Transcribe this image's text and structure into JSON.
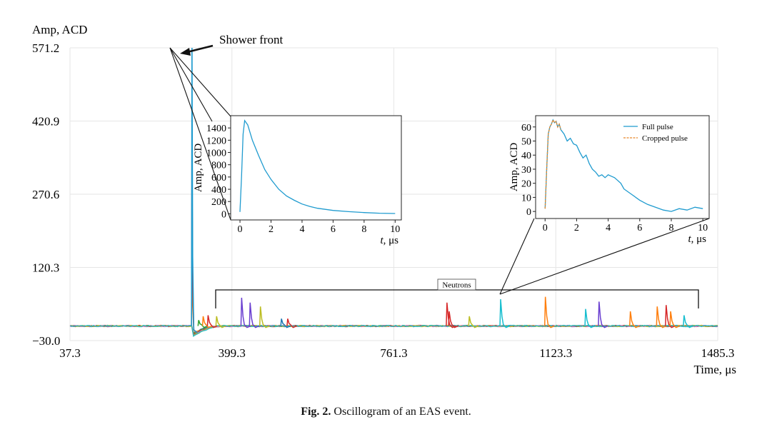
{
  "caption": {
    "label": "Fig. 2.",
    "text": "Oscillogram of an EAS event."
  },
  "chart_data": [
    {
      "type": "line",
      "title": "",
      "ylabel": "Amp, ACD",
      "xlabel": "Time, μs",
      "xlim": [
        37.3,
        1485.3
      ],
      "ylim": [
        -30.0,
        571.2
      ],
      "x_ticks": [
        "37.3",
        "399.3",
        "761.3",
        "1123.3",
        "1485.3"
      ],
      "y_ticks": [
        "−30.0",
        "120.3",
        "270.6",
        "420.9",
        "571.2"
      ],
      "x_tick_values": [
        37.3,
        399.3,
        761.3,
        1123.3,
        1485.3
      ],
      "y_tick_values": [
        -30.0,
        120.3,
        270.6,
        420.9,
        571.2
      ],
      "grid": true,
      "baseline": 0,
      "main_pulse": {
        "x": 310,
        "peak": 571.2,
        "secondary_peaks": [
          355,
          190
        ]
      },
      "annotations": {
        "shower_front": "Shower front",
        "neutrons": "Neutrons",
        "neutrons_range": [
          300,
          1475
        ]
      },
      "channel_colors": [
        "#1f77b4",
        "#ff7f0e",
        "#2ca02c",
        "#d62728",
        "#9467bd",
        "#8c564b",
        "#e377c2",
        "#bcbd22",
        "#17becf"
      ],
      "neutron_pulses": [
        {
          "x": 325,
          "amp": 12,
          "color": "#2ca02c"
        },
        {
          "x": 335,
          "amp": 20,
          "color": "#ff7f0e"
        },
        {
          "x": 346,
          "amp": 22,
          "color": "#d62728"
        },
        {
          "x": 365,
          "amp": 20,
          "color": "#bcbd22"
        },
        {
          "x": 421,
          "amp": 58,
          "color": "#6a3fd0"
        },
        {
          "x": 440,
          "amp": 48,
          "color": "#6a3fd0"
        },
        {
          "x": 463,
          "amp": 40,
          "color": "#bcbd22"
        },
        {
          "x": 510,
          "amp": 15,
          "color": "#1f77b4"
        },
        {
          "x": 524,
          "amp": 15,
          "color": "#d62728"
        },
        {
          "x": 880,
          "amp": 48,
          "color": "#d62728"
        },
        {
          "x": 885,
          "amp": 30,
          "color": "#d62728"
        },
        {
          "x": 930,
          "amp": 20,
          "color": "#bcbd22"
        },
        {
          "x": 1000,
          "amp": 55,
          "color": "#17becf"
        },
        {
          "x": 1100,
          "amp": 60,
          "color": "#ff7f0e"
        },
        {
          "x": 1190,
          "amp": 35,
          "color": "#17becf"
        },
        {
          "x": 1220,
          "amp": 50,
          "color": "#6a3fd0"
        },
        {
          "x": 1290,
          "amp": 30,
          "color": "#ff7f0e"
        },
        {
          "x": 1350,
          "amp": 40,
          "color": "#ff7f0e"
        },
        {
          "x": 1370,
          "amp": 43,
          "color": "#d62728"
        },
        {
          "x": 1380,
          "amp": 30,
          "color": "#ff7f0e"
        },
        {
          "x": 1410,
          "amp": 22,
          "color": "#17becf"
        }
      ]
    },
    {
      "type": "line",
      "title": "",
      "ylabel": "Amp, ACD",
      "xlabel": "t, μs",
      "xlim": [
        -0.6,
        10.4
      ],
      "ylim": [
        -100,
        1600
      ],
      "x_ticks": [
        "0",
        "2",
        "4",
        "6",
        "8",
        "10"
      ],
      "y_ticks": [
        "0",
        "200",
        "400",
        "600",
        "800",
        "1000",
        "1200",
        "1400"
      ],
      "x_tick_values": [
        0,
        2,
        4,
        6,
        8,
        10
      ],
      "y_tick_values": [
        0,
        200,
        400,
        600,
        800,
        1000,
        1200,
        1400
      ],
      "series": [
        {
          "color": "#1f9bcf",
          "x": [
            0,
            0.1,
            0.2,
            0.3,
            0.5,
            0.8,
            1.2,
            1.6,
            2,
            2.5,
            3,
            3.5,
            4,
            4.5,
            5,
            6,
            7,
            8,
            9,
            10
          ],
          "y": [
            30,
            600,
            1300,
            1520,
            1450,
            1200,
            950,
            720,
            560,
            400,
            290,
            220,
            160,
            120,
            90,
            55,
            35,
            20,
            10,
            5
          ]
        }
      ]
    },
    {
      "type": "line",
      "title": "",
      "ylabel": "Amp, ACD",
      "xlabel": "t, μs",
      "xlim": [
        -0.6,
        10.4
      ],
      "ylim": [
        -5,
        68
      ],
      "x_ticks": [
        "0",
        "2",
        "4",
        "6",
        "8",
        "10"
      ],
      "y_ticks": [
        "0",
        "10",
        "20",
        "30",
        "40",
        "50",
        "60"
      ],
      "x_tick_values": [
        0,
        2,
        4,
        6,
        8,
        10
      ],
      "y_tick_values": [
        0,
        10,
        20,
        30,
        40,
        50,
        60
      ],
      "legend": {
        "position": "top-right",
        "entries": [
          "Full pulse",
          "Cropped pulse"
        ]
      },
      "series": [
        {
          "name": "Full pulse",
          "color": "#1f9bcf",
          "x": [
            0,
            0.1,
            0.2,
            0.3,
            0.4,
            0.5,
            0.6,
            0.7,
            0.8,
            0.9,
            1.0,
            1.2,
            1.4,
            1.6,
            1.8,
            2.0,
            2.2,
            2.4,
            2.6,
            2.8,
            3.0,
            3.2,
            3.4,
            3.6,
            3.8,
            4.0,
            4.2,
            4.4,
            4.6,
            4.8,
            5.0,
            5.5,
            6.0,
            6.5,
            7.0,
            7.5,
            8.0,
            8.5,
            9.0,
            9.5,
            10.0
          ],
          "y": [
            2,
            30,
            55,
            60,
            62,
            65,
            63,
            64,
            60,
            62,
            58,
            55,
            50,
            52,
            48,
            47,
            42,
            38,
            40,
            34,
            30,
            28,
            25,
            26,
            24,
            26,
            25,
            24,
            22,
            20,
            16,
            12,
            8,
            5,
            3,
            1,
            0,
            2,
            1,
            3,
            2
          ]
        },
        {
          "name": "Cropped pulse",
          "color": "#e8882a",
          "x": [
            0,
            0.1,
            0.2,
            0.3,
            0.4,
            0.5,
            0.6,
            0.7,
            0.8,
            0.9,
            1.0
          ],
          "y": [
            2,
            30,
            55,
            60,
            62,
            65,
            63,
            64,
            60,
            62,
            58
          ]
        }
      ]
    }
  ]
}
